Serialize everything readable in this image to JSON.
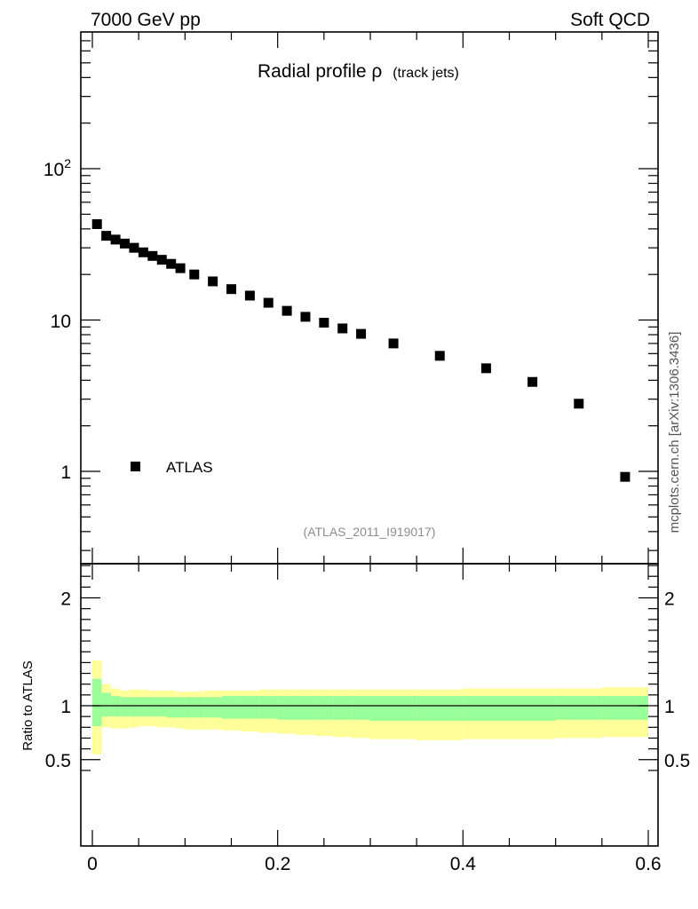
{
  "header": {
    "left": "7000 GeV pp",
    "right": "Soft QCD"
  },
  "side_label": "mcplots.cern.ch [arXiv:1306.3436]",
  "reference": "(ATLAS_2011_I919017)",
  "colors": {
    "data_marker": "#000000",
    "band_inner": "#99ff99",
    "band_outer": "#ffff99",
    "frame": "#000000",
    "reference_text": "#8c8c8c"
  },
  "chart_data": [
    {
      "type": "scatter",
      "panel": "main",
      "title_main": "Radial profile ρ",
      "title_sub": "(track jets)",
      "yscale": "log",
      "ylim": [
        0.27,
        800
      ],
      "xlim": [
        -0.02,
        0.6
      ],
      "ytick_labels": {
        "p100_base": "10",
        "p100_exp": "2",
        "p10": "10",
        "p1": "1"
      },
      "legend": {
        "position": "lower-left",
        "label": "ATLAS"
      },
      "series": [
        {
          "name": "ATLAS",
          "marker": "square",
          "x": [
            0.005,
            0.015,
            0.025,
            0.035,
            0.045,
            0.055,
            0.065,
            0.075,
            0.085,
            0.095,
            0.11,
            0.13,
            0.15,
            0.17,
            0.19,
            0.21,
            0.23,
            0.25,
            0.27,
            0.29,
            0.325,
            0.375,
            0.425,
            0.475,
            0.525,
            0.575
          ],
          "y": [
            43,
            36,
            34,
            32,
            30,
            28,
            26.5,
            25,
            23.5,
            22,
            20,
            18,
            16,
            14.5,
            13,
            11.5,
            10.5,
            9.6,
            8.8,
            8.1,
            7.0,
            5.8,
            4.8,
            3.9,
            2.8,
            0.92
          ]
        }
      ]
    },
    {
      "type": "area",
      "panel": "ratio",
      "ylabel": "Ratio to ATLAS",
      "xlim": [
        -0.02,
        0.6
      ],
      "ylim": [
        0.38,
        2.3
      ],
      "yticks": [
        0.5,
        1,
        2
      ],
      "ytick_labels": [
        "0.5",
        "1",
        "2"
      ],
      "xticks": [
        0,
        0.2,
        0.4,
        0.6
      ],
      "xtick_labels": [
        "0",
        "0.2",
        "0.4",
        "0.6"
      ],
      "bin_edges": [
        0,
        0.01,
        0.02,
        0.03,
        0.04,
        0.05,
        0.06,
        0.07,
        0.08,
        0.09,
        0.1,
        0.12,
        0.14,
        0.16,
        0.18,
        0.2,
        0.22,
        0.24,
        0.26,
        0.28,
        0.3,
        0.35,
        0.4,
        0.45,
        0.5,
        0.55,
        0.6
      ],
      "outer_band_low": [
        0.55,
        0.8,
        0.79,
        0.79,
        0.8,
        0.81,
        0.81,
        0.8,
        0.8,
        0.79,
        0.78,
        0.78,
        0.77,
        0.76,
        0.75,
        0.74,
        0.73,
        0.72,
        0.71,
        0.7,
        0.69,
        0.68,
        0.69,
        0.69,
        0.7,
        0.71
      ],
      "outer_band_high": [
        1.42,
        1.2,
        1.16,
        1.14,
        1.15,
        1.15,
        1.14,
        1.14,
        1.14,
        1.13,
        1.13,
        1.14,
        1.14,
        1.14,
        1.15,
        1.15,
        1.15,
        1.15,
        1.15,
        1.15,
        1.15,
        1.15,
        1.16,
        1.16,
        1.16,
        1.17
      ],
      "inner_band_low": [
        0.81,
        0.9,
        0.9,
        0.9,
        0.9,
        0.9,
        0.9,
        0.9,
        0.89,
        0.89,
        0.89,
        0.89,
        0.88,
        0.88,
        0.88,
        0.87,
        0.87,
        0.87,
        0.87,
        0.87,
        0.86,
        0.86,
        0.86,
        0.86,
        0.87,
        0.87
      ],
      "inner_band_high": [
        1.25,
        1.12,
        1.09,
        1.08,
        1.08,
        1.08,
        1.08,
        1.08,
        1.08,
        1.08,
        1.08,
        1.08,
        1.09,
        1.09,
        1.09,
        1.09,
        1.09,
        1.09,
        1.09,
        1.09,
        1.09,
        1.09,
        1.09,
        1.09,
        1.09,
        1.09
      ],
      "reference_line": 1
    }
  ]
}
